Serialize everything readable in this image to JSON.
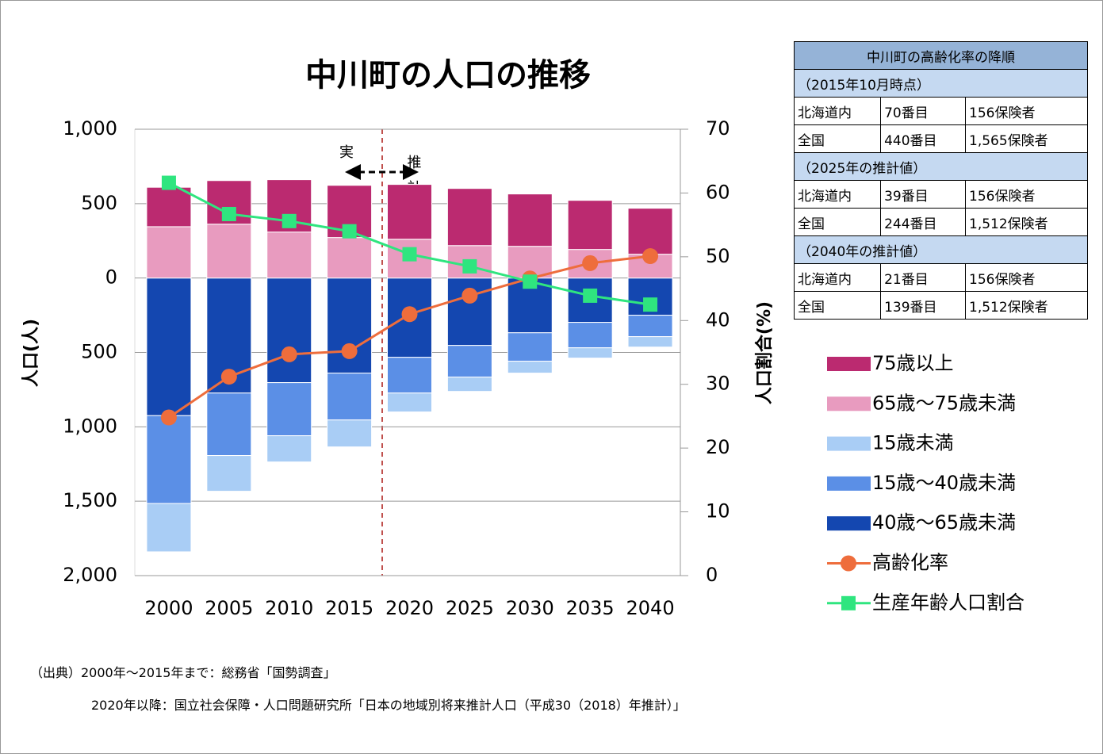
{
  "chart_data": {
    "type": "bar",
    "title": "中川町の人口の推移",
    "y_label": "人口(人)",
    "y2_label": "人口割合(%)",
    "annotations": [
      "実",
      "推計値"
    ],
    "categories": [
      "2000",
      "2005",
      "2010",
      "2015",
      "2020",
      "2025",
      "2030",
      "2035",
      "2040"
    ],
    "series": [
      {
        "name": "75歳以上",
        "type": "bar",
        "color": "#bb2a70",
        "values": [
          265,
          293,
          352,
          351,
          368,
          384,
          352,
          330,
          309
        ]
      },
      {
        "name": "65歳～75歳未満",
        "type": "bar",
        "color": "#e89bbf",
        "values": [
          345,
          362,
          309,
          272,
          261,
          218,
          213,
          192,
          160
        ]
      },
      {
        "name": "15歳未満",
        "type": "bar",
        "color": "#a9cdf5",
        "values": [
          -325,
          -240,
          -176,
          -181,
          -127,
          -96,
          -80,
          -69,
          -70
        ]
      },
      {
        "name": "15歳～40歳未満",
        "type": "bar",
        "color": "#5b8fe6",
        "values": [
          -590,
          -420,
          -357,
          -315,
          -240,
          -213,
          -191,
          -171,
          -144
        ]
      },
      {
        "name": "40歳～65歳未満",
        "type": "bar",
        "color": "#1447b0",
        "values": [
          -925,
          -773,
          -703,
          -639,
          -533,
          -453,
          -368,
          -298,
          -250
        ]
      },
      {
        "name": "高齢化率",
        "type": "line",
        "axis": "y2",
        "marker": "circle",
        "color": "#ee6d3c",
        "values": [
          24.8,
          31.2,
          34.7,
          35.2,
          41.0,
          43.9,
          46.6,
          49.0,
          50.1
        ]
      },
      {
        "name": "生産年齢人口割合",
        "type": "line",
        "axis": "y2",
        "marker": "square",
        "color": "#2fe57f",
        "values": [
          61.6,
          56.7,
          55.6,
          54.0,
          50.4,
          48.5,
          46.1,
          43.9,
          42.5
        ]
      }
    ],
    "ylim": [
      -2000,
      1000
    ],
    "yticks": [
      {
        "value": 1000,
        "label": "1,000"
      },
      500,
      0,
      {
        "value": -500,
        "label": "500"
      },
      {
        "value": -1000,
        "label": "1,000"
      },
      {
        "value": -1500,
        "label": "1,500"
      },
      {
        "value": -2000,
        "label": "2,000"
      }
    ],
    "y2lim": [
      0,
      70
    ],
    "y2ticks": [
      0,
      10,
      20,
      30,
      40,
      50,
      60,
      70
    ],
    "grid": true
  },
  "table": {
    "title": "中川町の高齢化率の降順",
    "sections": [
      {
        "heading": "（2015年10月時点）",
        "rows": [
          [
            "北海道内",
            "70番目",
            "156保険者"
          ],
          [
            "全国",
            "440番目",
            "1,565保険者"
          ]
        ]
      },
      {
        "heading": "（2025年の推計値）",
        "rows": [
          [
            "北海道内",
            "39番目",
            "156保険者"
          ],
          [
            "全国",
            "244番目",
            "1,512保険者"
          ]
        ]
      },
      {
        "heading": "（2040年の推計値）",
        "rows": [
          [
            "北海道内",
            "21番目",
            "156保険者"
          ],
          [
            "全国",
            "139番目",
            "1,512保険者"
          ]
        ]
      }
    ]
  },
  "footnote": [
    "（出典）2000年～2015年まで：総務省「国勢調査」",
    "2020年以降：国立社会保障・人口問題研究所「日本の地域別将来推計人口（平成30（2018）年推計）」"
  ]
}
